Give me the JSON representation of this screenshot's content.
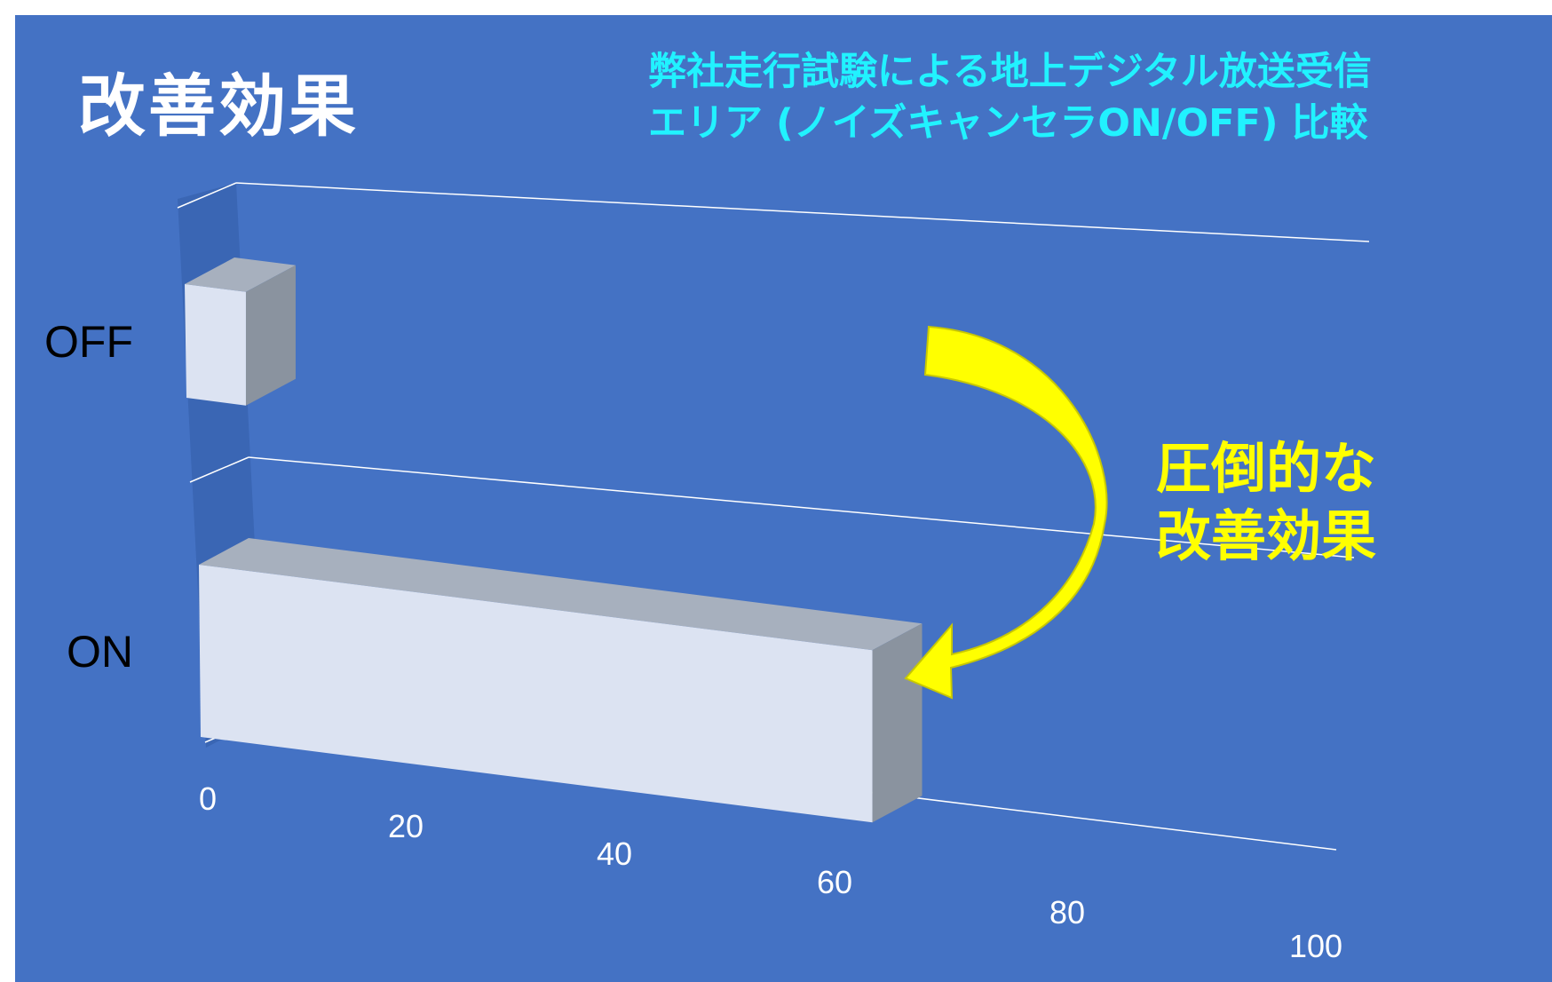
{
  "slide": {
    "title": "改善効果",
    "subtitle_line1": "弊社走行試験による地上デジタル放送受信",
    "subtitle_line2": "エリア (ノイズキャンセラON/OFF) 比較",
    "callout_line1": "圧倒的な",
    "callout_line2": "改善効果"
  },
  "colors": {
    "background": "#4472c4",
    "title": "#ffffff",
    "subtitle": "#21f2ff",
    "callout": "#ffff00",
    "arrow": "#ffff00",
    "bar_front": "#dce3f2",
    "bar_top": "#a7b0be",
    "bar_side": "#8a939f",
    "gridline": "#ffffff",
    "wall": "#3a65b3"
  },
  "chart_data": {
    "type": "bar",
    "orientation": "horizontal",
    "style": "3d",
    "categories": [
      "OFF",
      "ON"
    ],
    "values": [
      5,
      55
    ],
    "xlim": [
      0,
      100
    ],
    "x_ticks": [
      "0",
      "20",
      "40",
      "60",
      "80",
      "100"
    ],
    "grid": true,
    "legend": "none",
    "annotation": "圧倒的な改善効果"
  }
}
